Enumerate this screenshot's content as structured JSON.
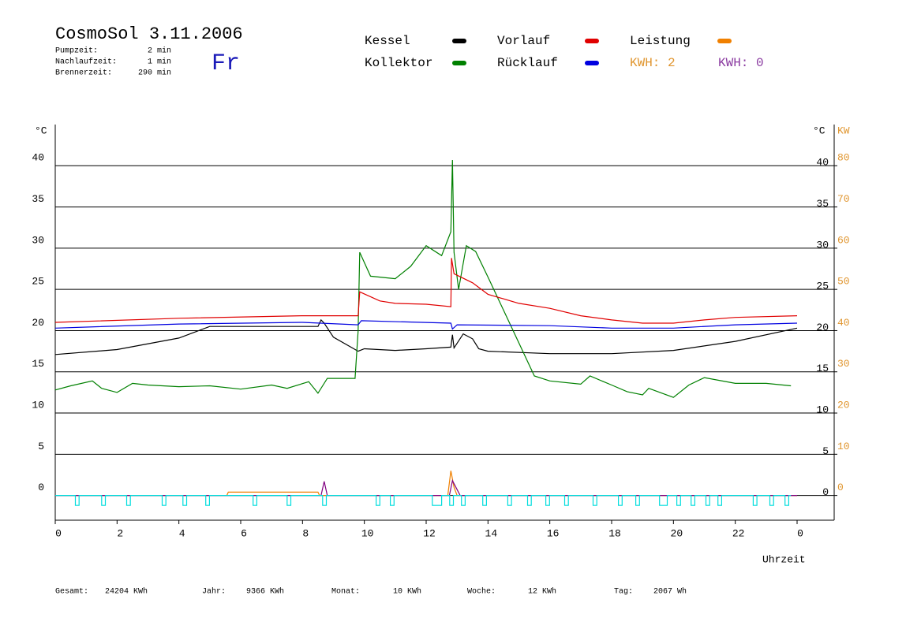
{
  "header": {
    "title": "CosmoSol 3.11.2006",
    "stats": [
      {
        "label": "Pumpzeit:",
        "value": "2 min"
      },
      {
        "label": "Nachlaufzeit:",
        "value": "1 min"
      },
      {
        "label": "Brennerzeit:",
        "value": "290 min"
      }
    ],
    "day": "Fr"
  },
  "kwh": [
    {
      "text": "KWH: 2",
      "color": "#e0952e"
    },
    {
      "text": "KWH: 0",
      "color": "#8a3aa0"
    }
  ],
  "chart_data": {
    "type": "line",
    "ylabel": "°C",
    "y2label": "KW",
    "xlabel": "Uhrzeit",
    "xlim": [
      0,
      25.2
    ],
    "xticks": [
      0,
      2,
      4,
      6,
      8,
      10,
      12,
      14,
      16,
      18,
      20,
      22,
      {
        "value": 24,
        "label": "0"
      }
    ],
    "ylim": [
      -3,
      45
    ],
    "yticks": [
      0,
      5,
      10,
      15,
      20,
      25,
      30,
      35,
      40
    ],
    "y2lim": [
      -6,
      90
    ],
    "y2ticks": [
      0,
      10,
      20,
      30,
      40,
      50,
      60,
      70,
      80
    ],
    "grid": true,
    "series": [
      {
        "name": "Kessel",
        "color": "#000000",
        "x": [
          0,
          2,
          4,
          5,
          8.5,
          8.6,
          8.7,
          9,
          9.8,
          10,
          11,
          12,
          12.8,
          12.85,
          12.9,
          13.2,
          13.5,
          13.7,
          14,
          16,
          18,
          20,
          22,
          24
        ],
        "values": [
          17.1,
          17.7,
          19.1,
          20.5,
          20.5,
          21.3,
          20.9,
          19.2,
          17.5,
          17.8,
          17.6,
          17.8,
          18.0,
          19.5,
          17.9,
          19.6,
          19.0,
          17.8,
          17.5,
          17.2,
          17.2,
          17.6,
          18.7,
          20.3
        ]
      },
      {
        "name": "Kollektor",
        "color": "#008000",
        "x": [
          0,
          0.5,
          1.2,
          1.5,
          2,
          2.5,
          3,
          4,
          5,
          6,
          7,
          7.5,
          8.2,
          8.5,
          8.8,
          9.7,
          9.8,
          9.85,
          10.2,
          11,
          11.5,
          12,
          12.5,
          12.8,
          12.85,
          12.9,
          13.05,
          13.3,
          13.6,
          14,
          14.5,
          15,
          15.5,
          16,
          17,
          17.3,
          18,
          18.5,
          19,
          19.2,
          20,
          20.5,
          21,
          22,
          23,
          23.8
        ],
        "values": [
          12.8,
          13.3,
          13.9,
          13.0,
          12.5,
          13.6,
          13.4,
          13.2,
          13.3,
          12.9,
          13.4,
          13.0,
          13.8,
          12.4,
          14.2,
          14.2,
          20,
          29.5,
          26.6,
          26.3,
          27.8,
          30.3,
          29.1,
          32,
          40.7,
          29.5,
          25,
          30.3,
          29.6,
          26.5,
          22.5,
          18.5,
          14.5,
          13.9,
          13.5,
          14.5,
          13.4,
          12.6,
          12.2,
          13.0,
          11.9,
          13.4,
          14.3,
          13.6,
          13.6,
          13.3
        ]
      },
      {
        "name": "Vorlauf",
        "color": "#e00000",
        "x": [
          0,
          4,
          8,
          9.8,
          9.85,
          10.5,
          11,
          12,
          12.8,
          12.82,
          12.9,
          13.5,
          14,
          15,
          16,
          17,
          18,
          19,
          20,
          21,
          22,
          24
        ],
        "values": [
          21.0,
          21.5,
          21.8,
          21.8,
          24.7,
          23.6,
          23.3,
          23.2,
          22.9,
          28.8,
          26.9,
          25.8,
          24.4,
          23.3,
          22.7,
          21.8,
          21.3,
          20.9,
          20.9,
          21.3,
          21.6,
          21.8
        ]
      },
      {
        "name": "Rücklauf",
        "color": "#0000e0",
        "x": [
          0,
          4,
          8,
          9.8,
          9.9,
          12.8,
          12.85,
          13,
          16,
          18,
          20,
          22,
          24
        ],
        "values": [
          20.3,
          20.8,
          21.0,
          20.7,
          21.2,
          20.9,
          20.2,
          20.7,
          20.6,
          20.3,
          20.3,
          20.7,
          20.9
        ]
      },
      {
        "name": "Leistung",
        "color": "#f08000",
        "axis": "y2",
        "x": [
          0,
          5.55,
          5.6,
          8.5,
          8.55,
          12.7,
          12.8,
          12.9,
          13.0,
          24
        ],
        "values": [
          0,
          0,
          0.8,
          0.8,
          0,
          0,
          6,
          2,
          0,
          0
        ]
      },
      {
        "color": "#800080",
        "x": [
          0,
          8.6,
          8.7,
          8.8,
          12.75,
          12.85,
          13.1,
          24
        ],
        "values": [
          0,
          0,
          1.7,
          0,
          0,
          1.8,
          0,
          0
        ]
      },
      {
        "color": "#00dddd",
        "x": [
          0,
          0.65,
          0.65,
          0.77,
          0.77,
          1.5,
          1.5,
          1.62,
          1.62,
          2.31,
          2.31,
          2.43,
          2.43,
          3.46,
          3.46,
          3.58,
          3.58,
          4.13,
          4.13,
          4.25,
          4.25,
          4.87,
          4.87,
          4.99,
          4.99,
          6.4,
          6.4,
          6.52,
          6.52,
          7.5,
          7.5,
          7.62,
          7.62,
          8.65,
          8.65,
          8.77,
          8.77,
          10.38,
          10.38,
          10.5,
          10.5,
          10.84,
          10.84,
          10.96,
          10.96,
          12.2,
          12.2,
          12.5,
          12.5,
          12.76,
          12.76,
          12.88,
          12.88,
          13.14,
          13.14,
          13.26,
          13.26,
          13.83,
          13.83,
          13.95,
          13.95,
          14.64,
          14.64,
          14.76,
          14.76,
          15.28,
          15.28,
          15.4,
          15.4,
          15.87,
          15.87,
          15.99,
          15.99,
          16.48,
          16.48,
          16.6,
          16.6,
          17.4,
          17.4,
          17.52,
          17.52,
          18.22,
          18.22,
          18.34,
          18.34,
          18.78,
          18.78,
          18.9,
          18.9,
          19.55,
          19.55,
          19.8,
          19.8,
          20.11,
          20.11,
          20.23,
          20.23,
          20.57,
          20.57,
          20.69,
          20.69,
          21.05,
          21.05,
          21.17,
          21.17,
          21.44,
          21.44,
          21.56,
          21.56,
          22.58,
          22.58,
          22.7,
          22.7,
          23.12,
          23.12,
          23.24,
          23.24,
          23.61,
          23.61,
          23.73,
          23.73,
          23.8
        ],
        "values": [
          0,
          0,
          -1.2,
          -1.2,
          0,
          0,
          -1.2,
          -1.2,
          0,
          0,
          -1.2,
          -1.2,
          0,
          0,
          -1.2,
          -1.2,
          0,
          0,
          -1.2,
          -1.2,
          0,
          0,
          -1.2,
          -1.2,
          0,
          0,
          -1.2,
          -1.2,
          0,
          0,
          -1.2,
          -1.2,
          0,
          0,
          -1.2,
          -1.2,
          0,
          0,
          -1.2,
          -1.2,
          0,
          0,
          -1.2,
          -1.2,
          0,
          0,
          -1.2,
          -1.2,
          0,
          0,
          -1.2,
          -1.2,
          0,
          0,
          -1.2,
          -1.2,
          0,
          0,
          -1.2,
          -1.2,
          0,
          0,
          -1.2,
          -1.2,
          0,
          0,
          -1.2,
          -1.2,
          0,
          0,
          -1.2,
          -1.2,
          0,
          0,
          -1.2,
          -1.2,
          0,
          0,
          -1.2,
          -1.2,
          0,
          0,
          -1.2,
          -1.2,
          0,
          0,
          -1.2,
          -1.2,
          0,
          0,
          -1.2,
          -1.2,
          0,
          0,
          -1.2,
          -1.2,
          0,
          0,
          -1.2,
          -1.2,
          0,
          0,
          -1.2,
          -1.2,
          0,
          0,
          -1.2,
          -1.2,
          0,
          0,
          -1.2,
          -1.2,
          0,
          0,
          -1.2,
          -1.2,
          0,
          0,
          -1.2,
          -1.2,
          0,
          0
        ]
      }
    ]
  },
  "footer": [
    {
      "label": "Gesamt:",
      "value": "24204 KWh"
    },
    {
      "label": "Jahr:",
      "value": "9366 KWh"
    },
    {
      "label": "Monat:",
      "value": "10 KWh"
    },
    {
      "label": "Woche:",
      "value": "12 KWh"
    },
    {
      "label": "Tag:",
      "value": "2067 Wh"
    }
  ]
}
